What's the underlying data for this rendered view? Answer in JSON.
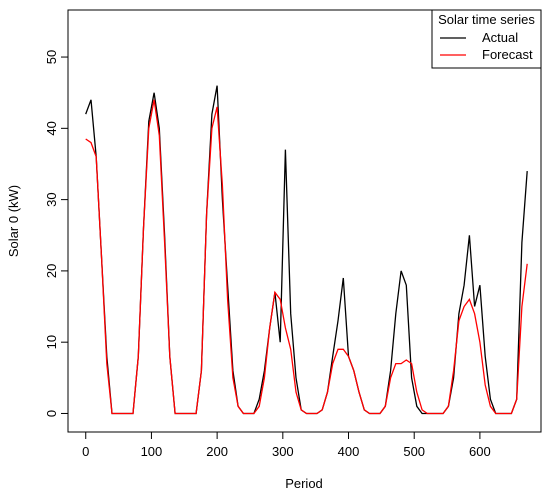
{
  "chart_data": {
    "type": "line",
    "xlabel": "Period",
    "ylabel": "Solar 0 (kW)",
    "legend": {
      "title": "Solar time series",
      "position": "top-right"
    },
    "x": [
      0,
      8,
      16,
      24,
      32,
      40,
      48,
      56,
      64,
      72,
      80,
      88,
      96,
      104,
      112,
      120,
      128,
      136,
      144,
      152,
      160,
      168,
      176,
      184,
      192,
      200,
      208,
      216,
      224,
      232,
      240,
      248,
      256,
      264,
      272,
      280,
      288,
      296,
      304,
      312,
      320,
      328,
      336,
      344,
      352,
      360,
      368,
      376,
      384,
      392,
      400,
      408,
      416,
      424,
      432,
      440,
      448,
      456,
      464,
      472,
      480,
      488,
      496,
      504,
      512,
      520,
      528,
      536,
      544,
      552,
      560,
      568,
      576,
      584,
      592,
      600,
      608,
      616,
      624,
      632,
      640,
      648,
      656,
      664,
      672
    ],
    "series": [
      {
        "name": "Actual",
        "color": "#000000",
        "values": [
          42,
          44,
          36,
          22,
          8,
          0,
          0,
          0,
          0,
          0,
          8,
          26,
          41,
          45,
          40,
          25,
          8,
          0,
          0,
          0,
          0,
          0,
          6,
          28,
          42,
          46,
          30,
          18,
          6,
          1,
          0,
          0,
          0,
          2,
          6,
          12,
          17,
          10,
          37,
          14,
          5,
          0.5,
          0,
          0,
          0,
          0.5,
          3,
          8,
          13,
          19,
          8,
          6,
          3,
          0.5,
          0,
          0,
          0,
          1,
          6,
          14,
          20,
          18,
          5,
          1,
          0,
          0,
          0,
          0,
          0,
          1,
          5,
          14,
          18,
          25,
          15,
          18,
          8,
          2,
          0,
          0,
          0,
          0,
          2,
          24,
          34
        ]
      },
      {
        "name": "Forecast",
        "color": "#ff0000",
        "values": [
          38.5,
          38,
          36,
          22,
          7,
          0,
          0,
          0,
          0,
          0,
          8,
          26,
          40,
          44,
          39,
          24,
          8,
          0,
          0,
          0,
          0,
          0,
          6,
          28,
          40,
          43,
          32,
          16,
          5,
          1,
          0,
          0,
          0,
          1,
          5,
          12,
          17,
          16,
          12,
          9,
          3,
          0.5,
          0,
          0,
          0,
          0.5,
          3,
          7,
          9,
          9,
          8,
          6,
          3,
          0.5,
          0,
          0,
          0,
          1,
          5,
          7,
          7,
          7.5,
          7,
          3,
          0.5,
          0,
          0,
          0,
          0,
          1,
          6,
          13,
          15,
          16,
          14,
          10,
          4,
          1,
          0,
          0,
          0,
          0,
          2,
          15,
          21
        ]
      }
    ],
    "xlim": [
      -27,
      693
    ],
    "xticks": [
      0,
      100,
      200,
      300,
      400,
      500,
      600
    ],
    "ylim": [
      -2.6,
      56.6
    ],
    "yticks": [
      0,
      10,
      20,
      30,
      40,
      50
    ]
  }
}
